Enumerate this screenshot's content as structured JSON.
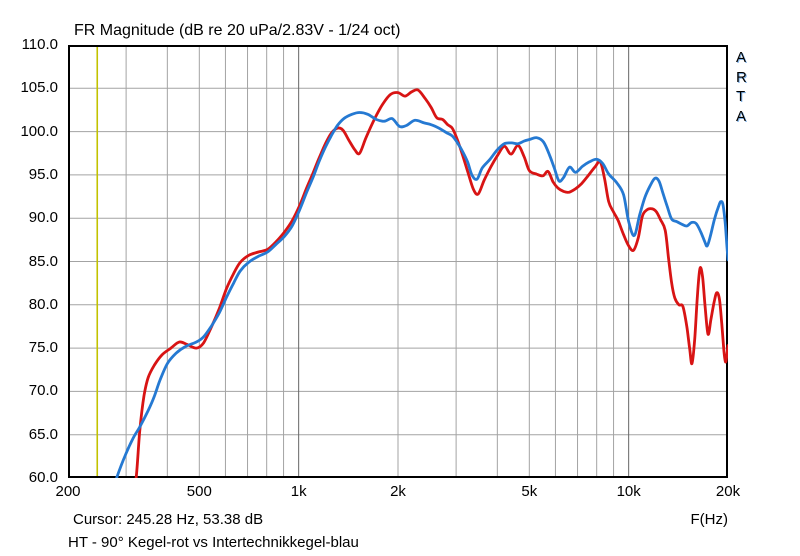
{
  "window": {
    "app_name": "ARTA"
  },
  "watermark": {
    "text": "ARTA"
  },
  "footer": {
    "cursor_readout": "Cursor: 245.28 Hz, 53.38 dB",
    "axis_unit_label": "F(Hz)",
    "subtitle": "HT - 90° Kegel-rot vs Intertechnikkegel-blau"
  },
  "colors": {
    "red_series": "#d81414",
    "blue_series": "#2579d2",
    "cursor_line": "#c2c200",
    "grid": "#a3a3a3",
    "grid_major": "#666666",
    "border": "#000000",
    "background": "#ffffff"
  },
  "chart_data": {
    "type": "line",
    "title": "FR Magnitude (dB re 20 uPa/2.83V - 1/24 oct)",
    "xlabel": "F(Hz)",
    "ylabel": "dB",
    "x_scale": "log",
    "xlim": [
      200,
      20000
    ],
    "ylim": [
      60,
      110
    ],
    "grid": true,
    "smoothing": "1/24 oct",
    "y_ticks": [
      {
        "value": 110,
        "label": "110.0"
      },
      {
        "value": 105,
        "label": "105.0"
      },
      {
        "value": 100,
        "label": "100.0"
      },
      {
        "value": 95,
        "label": "95.0"
      },
      {
        "value": 90,
        "label": "90.0"
      },
      {
        "value": 85,
        "label": "85.0"
      },
      {
        "value": 80,
        "label": "80.0"
      },
      {
        "value": 75,
        "label": "75.0"
      },
      {
        "value": 70,
        "label": "70.0"
      },
      {
        "value": 65,
        "label": "65.0"
      },
      {
        "value": 60,
        "label": "60.0"
      }
    ],
    "x_ticks": [
      {
        "value": 200,
        "label": "200"
      },
      {
        "value": 500,
        "label": "500"
      },
      {
        "value": 1000,
        "label": "1k"
      },
      {
        "value": 2000,
        "label": "2k"
      },
      {
        "value": 5000,
        "label": "5k"
      },
      {
        "value": 10000,
        "label": "10k"
      },
      {
        "value": 20000,
        "label": "20k"
      }
    ],
    "grid_freqs": [
      300,
      400,
      500,
      600,
      700,
      800,
      900,
      1000,
      2000,
      3000,
      4000,
      5000,
      6000,
      7000,
      8000,
      9000,
      10000
    ],
    "cursor": {
      "freq_hz": 245.28,
      "db": 53.38
    },
    "series": [
      {
        "name": "Kegel-rot (90°)",
        "color": "#d81414",
        "points": [
          [
            300,
            53.0
          ],
          [
            312,
            57.0
          ],
          [
            322,
            60.2
          ],
          [
            330,
            65.5
          ],
          [
            340,
            69.5
          ],
          [
            350,
            71.6
          ],
          [
            365,
            73.0
          ],
          [
            385,
            74.2
          ],
          [
            410,
            75.0
          ],
          [
            435,
            75.7
          ],
          [
            460,
            75.4
          ],
          [
            490,
            75.0
          ],
          [
            515,
            75.6
          ],
          [
            545,
            77.5
          ],
          [
            575,
            79.6
          ],
          [
            605,
            81.9
          ],
          [
            635,
            83.6
          ],
          [
            665,
            84.9
          ],
          [
            705,
            85.7
          ],
          [
            755,
            86.1
          ],
          [
            805,
            86.4
          ],
          [
            855,
            87.3
          ],
          [
            905,
            88.4
          ],
          [
            955,
            89.7
          ],
          [
            1005,
            91.4
          ],
          [
            1055,
            93.4
          ],
          [
            1105,
            95.2
          ],
          [
            1155,
            97.0
          ],
          [
            1205,
            98.6
          ],
          [
            1255,
            99.8
          ],
          [
            1310,
            100.4
          ],
          [
            1360,
            100.2
          ],
          [
            1420,
            99.0
          ],
          [
            1480,
            97.9
          ],
          [
            1530,
            97.5
          ],
          [
            1600,
            99.3
          ],
          [
            1700,
            101.5
          ],
          [
            1800,
            103.2
          ],
          [
            1900,
            104.3
          ],
          [
            2000,
            104.5
          ],
          [
            2100,
            104.1
          ],
          [
            2200,
            104.6
          ],
          [
            2300,
            104.8
          ],
          [
            2420,
            103.8
          ],
          [
            2520,
            102.8
          ],
          [
            2620,
            101.6
          ],
          [
            2730,
            101.4
          ],
          [
            2830,
            100.8
          ],
          [
            2920,
            100.4
          ],
          [
            3010,
            99.3
          ],
          [
            3120,
            97.6
          ],
          [
            3240,
            95.6
          ],
          [
            3380,
            93.4
          ],
          [
            3500,
            92.8
          ],
          [
            3650,
            94.4
          ],
          [
            3820,
            95.9
          ],
          [
            4000,
            97.2
          ],
          [
            4200,
            98.3
          ],
          [
            4400,
            97.4
          ],
          [
            4620,
            98.4
          ],
          [
            4820,
            97.1
          ],
          [
            5000,
            95.5
          ],
          [
            5250,
            95.1
          ],
          [
            5500,
            94.9
          ],
          [
            5700,
            95.4
          ],
          [
            5900,
            94.2
          ],
          [
            6100,
            93.5
          ],
          [
            6350,
            93.1
          ],
          [
            6600,
            93.0
          ],
          [
            6900,
            93.4
          ],
          [
            7200,
            94.0
          ],
          [
            7500,
            94.8
          ],
          [
            7900,
            95.9
          ],
          [
            8200,
            96.5
          ],
          [
            8450,
            94.6
          ],
          [
            8700,
            91.9
          ],
          [
            9000,
            90.7
          ],
          [
            9300,
            89.7
          ],
          [
            9650,
            88.1
          ],
          [
            10000,
            86.8
          ],
          [
            10350,
            86.3
          ],
          [
            10700,
            87.8
          ],
          [
            11000,
            90.2
          ],
          [
            11300,
            90.9
          ],
          [
            11700,
            91.1
          ],
          [
            12100,
            90.8
          ],
          [
            12500,
            89.8
          ],
          [
            12900,
            88.6
          ],
          [
            13200,
            85.5
          ],
          [
            13500,
            82.5
          ],
          [
            13800,
            80.8
          ],
          [
            14200,
            80.0
          ],
          [
            14600,
            79.8
          ],
          [
            15000,
            77.5
          ],
          [
            15300,
            75.0
          ],
          [
            15550,
            73.2
          ],
          [
            15850,
            76.0
          ],
          [
            16150,
            81.0
          ],
          [
            16450,
            84.2
          ],
          [
            16750,
            83.2
          ],
          [
            17050,
            79.8
          ],
          [
            17400,
            76.6
          ],
          [
            17750,
            78.3
          ],
          [
            18150,
            80.3
          ],
          [
            18500,
            81.4
          ],
          [
            18850,
            80.6
          ],
          [
            19150,
            77.8
          ],
          [
            19450,
            74.6
          ],
          [
            19650,
            73.4
          ],
          [
            19850,
            74.2
          ],
          [
            20000,
            75.3
          ]
        ]
      },
      {
        "name": "Intertechnikkegel-blau",
        "color": "#2579d2",
        "points": [
          [
            268,
            57.5
          ],
          [
            282,
            60.2
          ],
          [
            298,
            62.6
          ],
          [
            315,
            64.6
          ],
          [
            330,
            65.9
          ],
          [
            350,
            67.8
          ],
          [
            365,
            69.4
          ],
          [
            380,
            71.3
          ],
          [
            400,
            73.2
          ],
          [
            425,
            74.4
          ],
          [
            455,
            75.2
          ],
          [
            490,
            75.7
          ],
          [
            515,
            76.3
          ],
          [
            545,
            77.6
          ],
          [
            575,
            79.1
          ],
          [
            605,
            80.9
          ],
          [
            635,
            82.5
          ],
          [
            665,
            83.9
          ],
          [
            705,
            84.9
          ],
          [
            755,
            85.6
          ],
          [
            805,
            86.1
          ],
          [
            855,
            87.0
          ],
          [
            905,
            87.9
          ],
          [
            955,
            89.1
          ],
          [
            1005,
            90.9
          ],
          [
            1055,
            92.9
          ],
          [
            1105,
            94.7
          ],
          [
            1155,
            96.6
          ],
          [
            1205,
            98.2
          ],
          [
            1255,
            99.5
          ],
          [
            1310,
            100.7
          ],
          [
            1370,
            101.5
          ],
          [
            1450,
            102.0
          ],
          [
            1530,
            102.2
          ],
          [
            1620,
            102.0
          ],
          [
            1720,
            101.4
          ],
          [
            1820,
            101.2
          ],
          [
            1920,
            101.5
          ],
          [
            2020,
            100.6
          ],
          [
            2120,
            100.7
          ],
          [
            2250,
            101.3
          ],
          [
            2400,
            101.0
          ],
          [
            2520,
            100.8
          ],
          [
            2660,
            100.4
          ],
          [
            2800,
            99.9
          ],
          [
            2920,
            99.5
          ],
          [
            3030,
            98.7
          ],
          [
            3140,
            97.7
          ],
          [
            3250,
            96.5
          ],
          [
            3350,
            95.0
          ],
          [
            3470,
            94.5
          ],
          [
            3600,
            95.8
          ],
          [
            3800,
            96.8
          ],
          [
            4000,
            97.9
          ],
          [
            4200,
            98.6
          ],
          [
            4420,
            98.7
          ],
          [
            4620,
            98.6
          ],
          [
            4820,
            98.9
          ],
          [
            5020,
            99.1
          ],
          [
            5270,
            99.3
          ],
          [
            5520,
            98.8
          ],
          [
            5770,
            97.2
          ],
          [
            5950,
            95.8
          ],
          [
            6150,
            94.3
          ],
          [
            6350,
            94.7
          ],
          [
            6620,
            95.9
          ],
          [
            6900,
            95.3
          ],
          [
            7250,
            96.0
          ],
          [
            7600,
            96.5
          ],
          [
            8000,
            96.8
          ],
          [
            8350,
            96.3
          ],
          [
            8700,
            95.1
          ],
          [
            9200,
            94.1
          ],
          [
            9650,
            92.7
          ],
          [
            10000,
            89.6
          ],
          [
            10400,
            88.0
          ],
          [
            10800,
            90.4
          ],
          [
            11200,
            92.4
          ],
          [
            11600,
            93.7
          ],
          [
            12000,
            94.6
          ],
          [
            12350,
            94.3
          ],
          [
            12700,
            92.9
          ],
          [
            13100,
            91.3
          ],
          [
            13500,
            89.9
          ],
          [
            14000,
            89.6
          ],
          [
            14500,
            89.3
          ],
          [
            15000,
            89.1
          ],
          [
            15500,
            89.5
          ],
          [
            16000,
            89.4
          ],
          [
            16500,
            88.5
          ],
          [
            17000,
            87.3
          ],
          [
            17300,
            86.8
          ],
          [
            17700,
            88.0
          ],
          [
            18200,
            89.9
          ],
          [
            18700,
            91.3
          ],
          [
            19000,
            91.9
          ],
          [
            19300,
            91.6
          ],
          [
            19600,
            89.6
          ],
          [
            19850,
            86.8
          ],
          [
            20000,
            85.2
          ]
        ]
      }
    ]
  }
}
